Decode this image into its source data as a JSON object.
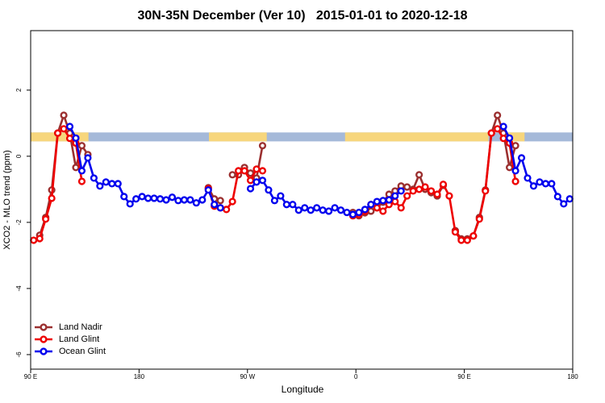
{
  "chart_data": {
    "type": "line",
    "title": "30N-35N December (Ver 10)   2015-01-01 to 2020-12-18",
    "x_label": "Longitude",
    "y_label": "XCO2 - MLO trend (ppm)",
    "xlim": [
      90,
      540
    ],
    "ylim": [
      -6.44,
      3.8
    ],
    "xticks": [
      {
        "value": 90,
        "label": "90 E"
      },
      {
        "value": 180,
        "label": "180"
      },
      {
        "value": 270,
        "label": "90 W"
      },
      {
        "value": 360,
        "label": "0"
      },
      {
        "value": 450,
        "label": "90 E"
      },
      {
        "value": 540,
        "label": "180"
      }
    ],
    "yticks": [
      -6,
      -4,
      -2,
      0,
      2
    ],
    "legend": "bottomleft",
    "band": {
      "y": [
        0.45,
        0.72
      ],
      "ocean_color": "#a5b9d9",
      "land_color": "#f7d67c",
      "land": [
        [
          90,
          138
        ],
        [
          238,
          286
        ],
        [
          351,
          470
        ],
        [
          486,
          500
        ]
      ]
    },
    "x": [
      92.5,
      97.5,
      102.5,
      107.5,
      112.5,
      117.5,
      122.5,
      127.5,
      132.5,
      137.5,
      142.5,
      147.5,
      152.5,
      157.5,
      162.5,
      167.5,
      172.5,
      177.5,
      182.5,
      187.5,
      192.5,
      197.5,
      202.5,
      207.5,
      212.5,
      217.5,
      222.5,
      227.5,
      232.5,
      237.5,
      242.5,
      247.5,
      252.5,
      257.5,
      262.5,
      267.5,
      272.5,
      277.5,
      282.5,
      287.5,
      292.5,
      297.5,
      302.5,
      307.5,
      312.5,
      317.5,
      322.5,
      327.5,
      332.5,
      337.5,
      342.5,
      347.5,
      352.5,
      357.5,
      362.5,
      367.5,
      372.5,
      377.5,
      382.5,
      387.5,
      392.5,
      397.5,
      402.5,
      407.5,
      412.5,
      417.5,
      422.5,
      427.5,
      432.5,
      437.5,
      442.5,
      447.5,
      452.5,
      457.5,
      462.5,
      467.5,
      472.5,
      477.5,
      482.5,
      487.5,
      492.5,
      497.5,
      502.5,
      507.5,
      512.5,
      517.5,
      522.5,
      527.5,
      532.5,
      537.5
    ],
    "series": [
      {
        "name": "Land Nadir",
        "color": "#9b3030",
        "values": [
          null,
          -2.39,
          -1.85,
          -1.02,
          0.7,
          1.24,
          0.7,
          -0.34,
          0.32,
          0.05,
          null,
          null,
          null,
          null,
          null,
          null,
          null,
          null,
          null,
          null,
          null,
          null,
          null,
          null,
          null,
          null,
          null,
          null,
          null,
          -0.95,
          -1.29,
          -1.34,
          null,
          -0.56,
          -0.56,
          -0.34,
          -0.51,
          -0.66,
          0.32,
          null,
          null,
          null,
          null,
          null,
          null,
          null,
          null,
          null,
          null,
          null,
          null,
          null,
          null,
          -1.7,
          -1.8,
          -1.71,
          -1.66,
          -1.56,
          -1.39,
          -1.15,
          -1.05,
          -0.9,
          -0.93,
          -1.0,
          -0.56,
          -1.0,
          -1.1,
          -1.2,
          -0.88,
          null,
          -2.25,
          -2.5,
          -2.5,
          -2.41,
          -1.85,
          -1.02,
          0.7,
          1.24,
          0.7,
          -0.34,
          0.32,
          null,
          null,
          null,
          null,
          null,
          null,
          null,
          null,
          null
        ]
      },
      {
        "name": "Land Glint",
        "color": "#ee0000",
        "values": [
          -2.54,
          -2.49,
          -1.9,
          -1.27,
          0.7,
          0.83,
          0.54,
          0.4,
          -0.76,
          null,
          null,
          null,
          null,
          null,
          null,
          null,
          null,
          null,
          null,
          null,
          null,
          null,
          null,
          null,
          null,
          null,
          null,
          null,
          null,
          -0.98,
          -1.51,
          -1.56,
          -1.61,
          -1.37,
          -0.44,
          -0.44,
          -0.73,
          -0.39,
          -0.44,
          null,
          null,
          null,
          null,
          null,
          null,
          null,
          null,
          null,
          null,
          null,
          null,
          null,
          null,
          -1.8,
          -1.76,
          -1.66,
          -1.46,
          -1.56,
          -1.66,
          -1.46,
          -1.37,
          -1.56,
          -1.2,
          -1.05,
          -1.0,
          -0.93,
          -1.05,
          -1.15,
          -0.85,
          -1.2,
          -2.29,
          -2.54,
          -2.54,
          -2.41,
          -1.9,
          -1.05,
          0.7,
          0.83,
          0.54,
          0.4,
          -0.76,
          null,
          null,
          null,
          null,
          null,
          null,
          null,
          null,
          null
        ]
      },
      {
        "name": "Ocean Glint",
        "color": "#0000ee",
        "values": [
          null,
          null,
          null,
          null,
          null,
          null,
          0.9,
          0.55,
          -0.44,
          -0.05,
          -0.66,
          -0.9,
          -0.78,
          -0.83,
          -0.83,
          -1.22,
          -1.44,
          -1.29,
          -1.22,
          -1.27,
          -1.27,
          -1.29,
          -1.32,
          -1.24,
          -1.34,
          -1.32,
          -1.32,
          -1.41,
          -1.32,
          -1.02,
          -1.46,
          -1.56,
          null,
          null,
          null,
          null,
          -0.98,
          -0.78,
          -0.73,
          -1.02,
          -1.34,
          -1.2,
          -1.46,
          -1.46,
          -1.63,
          -1.56,
          -1.63,
          -1.56,
          -1.63,
          -1.66,
          -1.56,
          -1.63,
          -1.7,
          -1.76,
          -1.7,
          -1.61,
          -1.46,
          -1.37,
          -1.34,
          -1.32,
          -1.2,
          -1.05,
          null,
          null,
          null,
          null,
          null,
          null,
          null,
          null,
          null,
          null,
          null,
          null,
          null,
          null,
          null,
          null,
          0.9,
          0.55,
          -0.44,
          -0.05,
          -0.66,
          -0.9,
          -0.78,
          -0.83,
          -0.83,
          -1.22,
          -1.44,
          -1.29
        ]
      }
    ]
  }
}
